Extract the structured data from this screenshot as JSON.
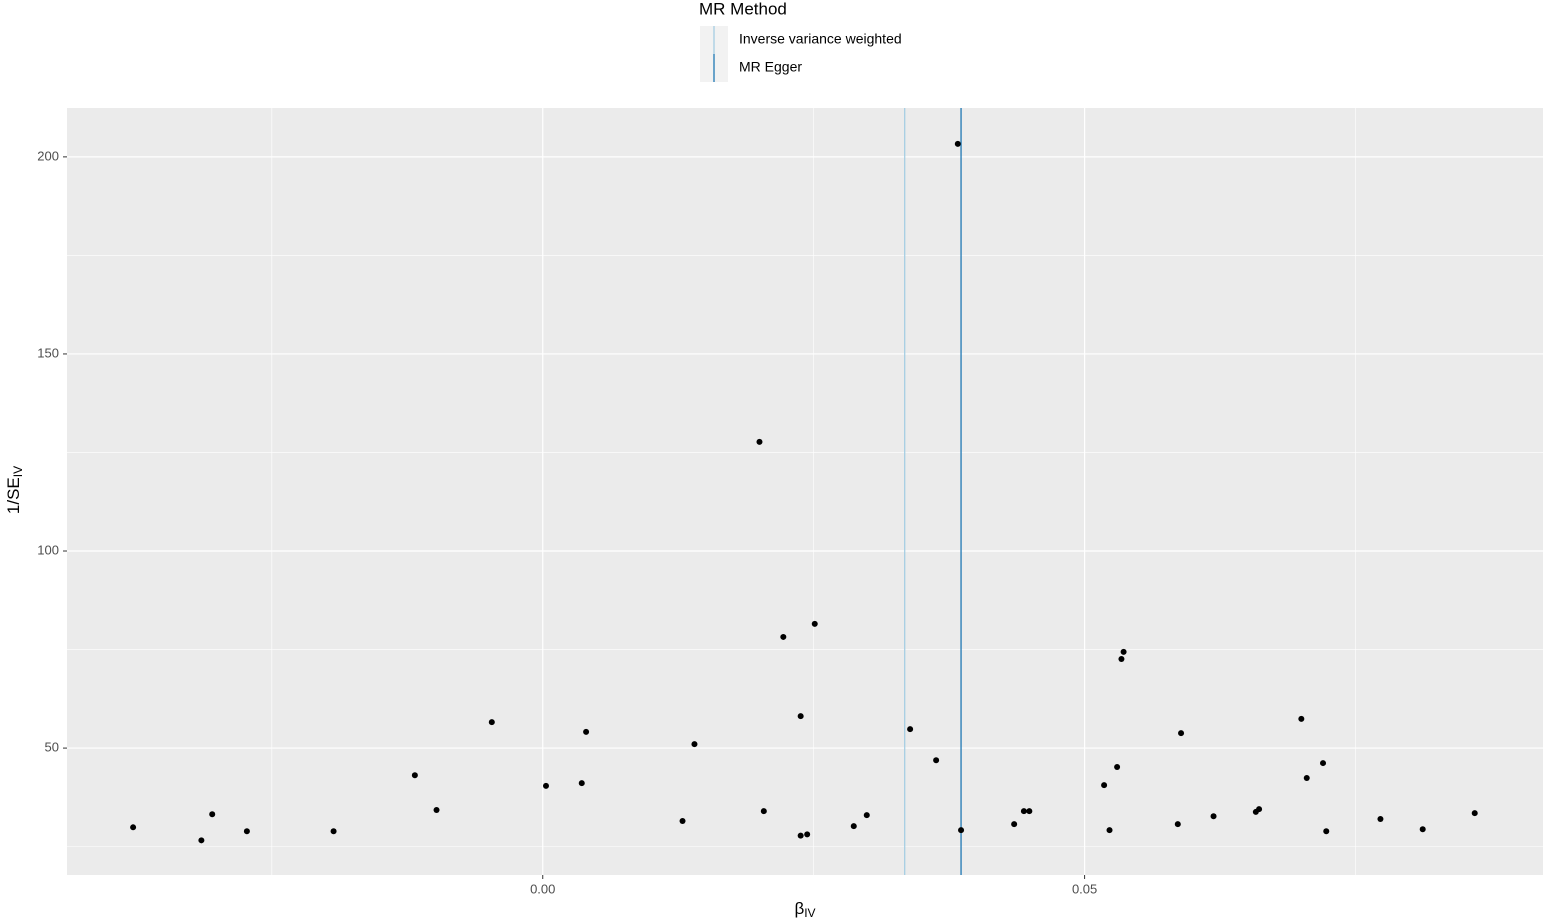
{
  "chart_data": {
    "type": "scatter",
    "xlabel": {
      "main": "β",
      "sub": "IV"
    },
    "ylabel": {
      "main": "1/SE",
      "sub": "IV"
    },
    "legend_title": "MR Method",
    "lines": [
      {
        "name": "Inverse variance weighted",
        "color": "#a6cee3",
        "x": 0.0334
      },
      {
        "name": "MR Egger",
        "color": "#1f78b4",
        "x": 0.0386
      }
    ],
    "point_color": "#000000",
    "x": [
      -0.0378,
      -0.0315,
      -0.0305,
      -0.0273,
      -0.0193,
      -0.0118,
      -0.0098,
      -0.0047,
      0.0003,
      0.0036,
      0.004,
      0.0129,
      0.014,
      0.02,
      0.0204,
      0.0222,
      0.0238,
      0.0238,
      0.0244,
      0.0251,
      0.0287,
      0.0299,
      0.0339,
      0.0363,
      0.0383,
      0.0386,
      0.0435,
      0.0444,
      0.0449,
      0.0518,
      0.0523,
      0.053,
      0.0534,
      0.0536,
      0.0586,
      0.0589,
      0.0619,
      0.0658,
      0.0661,
      0.07,
      0.0705,
      0.072,
      0.0723,
      0.0773,
      0.0812,
      0.086
    ],
    "y": [
      29.9,
      26.6,
      33.2,
      28.9,
      28.9,
      43.1,
      34.3,
      56.6,
      40.4,
      41.1,
      54.1,
      31.5,
      51.0,
      127.7,
      34.0,
      78.2,
      58.1,
      27.8,
      28.1,
      81.5,
      30.2,
      33.0,
      54.8,
      46.9,
      203.3,
      29.2,
      30.7,
      34.0,
      34.0,
      40.6,
      29.2,
      45.2,
      72.6,
      74.4,
      30.7,
      53.8,
      32.7,
      33.8,
      34.5,
      57.4,
      42.4,
      46.2,
      28.9,
      32.0,
      29.4,
      33.5
    ],
    "xlim": [
      -0.0439,
      0.0923
    ],
    "ylim": [
      17.8,
      212.4
    ],
    "xticks": [
      {
        "value": 0,
        "label": "0.00"
      },
      0.05
    ],
    "yticks": [
      50,
      100,
      150,
      200
    ],
    "grid": true
  }
}
